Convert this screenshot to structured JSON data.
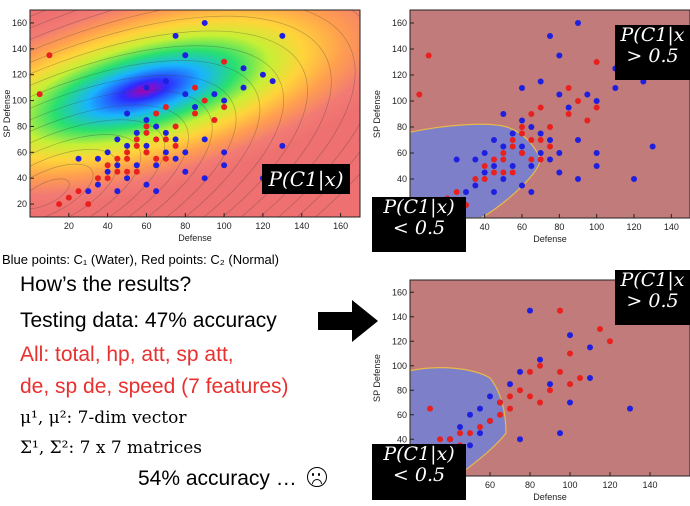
{
  "chart_data": [
    {
      "type": "heatmap",
      "xlabel": "Defense",
      "ylabel": "SP Defense",
      "xlim": [
        0,
        170
      ],
      "ylim": [
        10,
        170
      ],
      "xticks": [
        "20",
        "40",
        "60",
        "80",
        "100",
        "120",
        "140",
        "160"
      ],
      "yticks": [
        "20",
        "40",
        "60",
        "80",
        "100",
        "120",
        "140",
        "160"
      ],
      "grid": false,
      "label": "P(C1|x)",
      "series": [
        {
          "color": "#1f1fe0",
          "points": [
            [
              90,
              160
            ],
            [
              75,
              150
            ],
            [
              130,
              150
            ],
            [
              80,
              135
            ],
            [
              110,
              125
            ],
            [
              120,
              120
            ],
            [
              125,
              115
            ],
            [
              70,
              115
            ],
            [
              60,
              110
            ],
            [
              80,
              105
            ],
            [
              95,
              105
            ],
            [
              110,
              110
            ],
            [
              100,
              100
            ],
            [
              85,
              95
            ],
            [
              50,
              90
            ],
            [
              60,
              85
            ],
            [
              65,
              80
            ],
            [
              70,
              75
            ],
            [
              55,
              75
            ],
            [
              45,
              70
            ],
            [
              75,
              70
            ],
            [
              90,
              70
            ],
            [
              50,
              65
            ],
            [
              60,
              65
            ],
            [
              70,
              60
            ],
            [
              80,
              60
            ],
            [
              100,
              60
            ],
            [
              130,
              65
            ],
            [
              40,
              60
            ],
            [
              35,
              55
            ],
            [
              25,
              55
            ],
            [
              45,
              50
            ],
            [
              55,
              50
            ],
            [
              65,
              50
            ],
            [
              40,
              45
            ],
            [
              50,
              40
            ],
            [
              35,
              35
            ],
            [
              60,
              35
            ],
            [
              30,
              30
            ],
            [
              45,
              30
            ],
            [
              65,
              30
            ],
            [
              90,
              40
            ],
            [
              120,
              40
            ],
            [
              100,
              50
            ],
            [
              80,
              45
            ],
            [
              75,
              55
            ]
          ]
        },
        {
          "color": "#e8201e",
          "points": [
            [
              10,
              135
            ],
            [
              5,
              105
            ],
            [
              100,
              130
            ],
            [
              85,
              110
            ],
            [
              90,
              100
            ],
            [
              100,
              95
            ],
            [
              95,
              85
            ],
            [
              70,
              95
            ],
            [
              65,
              90
            ],
            [
              85,
              90
            ],
            [
              60,
              80
            ],
            [
              75,
              80
            ],
            [
              60,
              75
            ],
            [
              70,
              70
            ],
            [
              65,
              70
            ],
            [
              55,
              65
            ],
            [
              50,
              60
            ],
            [
              60,
              60
            ],
            [
              65,
              55
            ],
            [
              70,
              55
            ],
            [
              50,
              55
            ],
            [
              45,
              55
            ],
            [
              40,
              50
            ],
            [
              55,
              45
            ],
            [
              45,
              45
            ],
            [
              35,
              40
            ],
            [
              40,
              40
            ],
            [
              50,
              45
            ],
            [
              25,
              30
            ],
            [
              20,
              25
            ],
            [
              30,
              20
            ],
            [
              15,
              20
            ],
            [
              60,
              60
            ],
            [
              55,
              70
            ],
            [
              75,
              65
            ]
          ]
        }
      ]
    },
    {
      "type": "scatter",
      "xlabel": "Defense",
      "ylabel": "SP Defense",
      "xlim": [
        0,
        150
      ],
      "ylim": [
        10,
        170
      ],
      "xticks": [
        "40",
        "60",
        "80",
        "100",
        "120",
        "140"
      ],
      "yticks": [
        "20",
        "40",
        "60",
        "80",
        "100",
        "120",
        "140",
        "160"
      ],
      "grid": false,
      "upper_label": [
        "P(C1|x",
        "> 0.5"
      ],
      "lower_label": [
        "P(C1|x)",
        "< 0.5"
      ],
      "series": [
        {
          "color": "#1f1fe0",
          "points": [
            [
              90,
              160
            ],
            [
              75,
              150
            ],
            [
              130,
              150
            ],
            [
              80,
              135
            ],
            [
              110,
              125
            ],
            [
              120,
              120
            ],
            [
              125,
              115
            ],
            [
              70,
              115
            ],
            [
              60,
              110
            ],
            [
              80,
              105
            ],
            [
              95,
              105
            ],
            [
              110,
              110
            ],
            [
              100,
              100
            ],
            [
              85,
              95
            ],
            [
              50,
              90
            ],
            [
              60,
              85
            ],
            [
              65,
              80
            ],
            [
              70,
              75
            ],
            [
              55,
              75
            ],
            [
              45,
              70
            ],
            [
              75,
              70
            ],
            [
              90,
              70
            ],
            [
              50,
              65
            ],
            [
              60,
              65
            ],
            [
              70,
              60
            ],
            [
              80,
              60
            ],
            [
              100,
              60
            ],
            [
              130,
              65
            ],
            [
              40,
              60
            ],
            [
              35,
              55
            ],
            [
              25,
              55
            ],
            [
              45,
              50
            ],
            [
              55,
              50
            ],
            [
              65,
              50
            ],
            [
              40,
              45
            ],
            [
              50,
              40
            ],
            [
              35,
              35
            ],
            [
              60,
              35
            ],
            [
              30,
              30
            ],
            [
              45,
              30
            ],
            [
              65,
              30
            ],
            [
              90,
              40
            ],
            [
              120,
              40
            ],
            [
              100,
              50
            ],
            [
              80,
              45
            ],
            [
              75,
              55
            ]
          ]
        },
        {
          "color": "#e8201e",
          "points": [
            [
              10,
              135
            ],
            [
              5,
              105
            ],
            [
              100,
              130
            ],
            [
              85,
              110
            ],
            [
              90,
              100
            ],
            [
              100,
              95
            ],
            [
              95,
              85
            ],
            [
              70,
              95
            ],
            [
              65,
              90
            ],
            [
              85,
              90
            ],
            [
              60,
              80
            ],
            [
              75,
              80
            ],
            [
              60,
              75
            ],
            [
              70,
              70
            ],
            [
              65,
              70
            ],
            [
              55,
              65
            ],
            [
              50,
              60
            ],
            [
              60,
              60
            ],
            [
              65,
              55
            ],
            [
              70,
              55
            ],
            [
              50,
              55
            ],
            [
              45,
              55
            ],
            [
              40,
              50
            ],
            [
              55,
              45
            ],
            [
              45,
              45
            ],
            [
              35,
              40
            ],
            [
              40,
              40
            ],
            [
              50,
              45
            ],
            [
              25,
              30
            ],
            [
              20,
              25
            ],
            [
              30,
              20
            ],
            [
              15,
              20
            ],
            [
              60,
              60
            ],
            [
              55,
              70
            ],
            [
              75,
              65
            ]
          ]
        }
      ]
    },
    {
      "type": "scatter",
      "xlabel": "Defense",
      "ylabel": "SP Defense",
      "xlim": [
        20,
        160
      ],
      "ylim": [
        10,
        170
      ],
      "xticks": [
        "40",
        "60",
        "80",
        "100",
        "120",
        "140"
      ],
      "yticks": [
        "40",
        "60",
        "80",
        "100",
        "120",
        "140",
        "160"
      ],
      "grid": false,
      "upper_label": [
        "P(C1|x",
        "> 0.5"
      ],
      "lower_label": [
        "P(C1|x)",
        "< 0.5"
      ],
      "series": [
        {
          "color": "#1f1fe0",
          "points": [
            [
              80,
              145
            ],
            [
              100,
              125
            ],
            [
              110,
              115
            ],
            [
              85,
              105
            ],
            [
              75,
              95
            ],
            [
              70,
              85
            ],
            [
              60,
              75
            ],
            [
              65,
              70
            ],
            [
              55,
              65
            ],
            [
              50,
              60
            ],
            [
              60,
              55
            ],
            [
              45,
              50
            ],
            [
              55,
              45
            ],
            [
              40,
              40
            ],
            [
              50,
              35
            ],
            [
              75,
              40
            ],
            [
              95,
              45
            ],
            [
              110,
              90
            ],
            [
              130,
              65
            ],
            [
              100,
              70
            ],
            [
              90,
              85
            ]
          ]
        },
        {
          "color": "#e8201e",
          "points": [
            [
              30,
              65
            ],
            [
              95,
              145
            ],
            [
              115,
              130
            ],
            [
              100,
              110
            ],
            [
              85,
              100
            ],
            [
              80,
              95
            ],
            [
              95,
              95
            ],
            [
              100,
              85
            ],
            [
              75,
              80
            ],
            [
              80,
              75
            ],
            [
              85,
              70
            ],
            [
              70,
              65
            ],
            [
              65,
              60
            ],
            [
              60,
              55
            ],
            [
              55,
              50
            ],
            [
              50,
              45
            ],
            [
              45,
              45
            ],
            [
              40,
              40
            ],
            [
              35,
              40
            ],
            [
              45,
              35
            ],
            [
              70,
              75
            ],
            [
              90,
              80
            ],
            [
              105,
              90
            ],
            [
              120,
              120
            ],
            [
              65,
              70
            ]
          ]
        }
      ]
    }
  ],
  "text": {
    "caption": "Blue points: C₁ (Water), Red points: C₂ (Normal)",
    "question": "How’s the results?",
    "testing": "Testing data: 47% accuracy",
    "features_line1": "All: total, hp, att, sp att,",
    "features_line2": "de, sp de, speed (7 features)",
    "mu_line": "μ¹, μ²: 7-dim vector",
    "sigma_line": "Σ¹, Σ²: 7 x 7 matrices",
    "accuracy": "54% accuracy …"
  },
  "colors": {
    "red_text": "#e8302e",
    "blue_point": "#1f1fe0",
    "red_point": "#e8201e",
    "region_red": "#c27b7b",
    "region_blue": "#7d80c8"
  }
}
